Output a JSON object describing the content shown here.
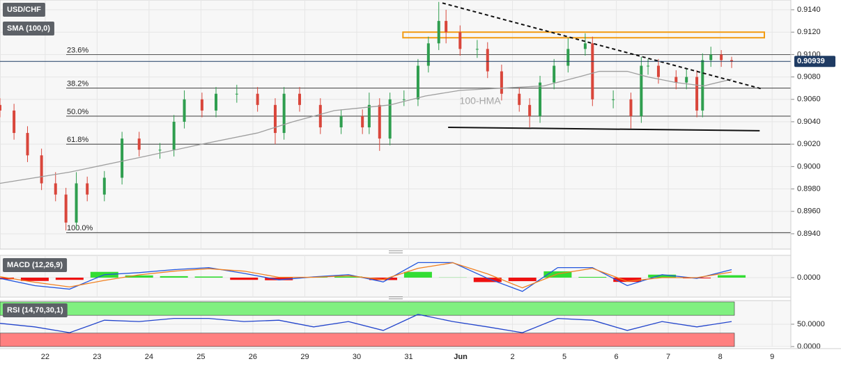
{
  "chart_data": [
    {
      "type": "candlestick",
      "ylim": [
        0.89263,
        0.91487
      ],
      "yticks": [
        {
          "value": 0.914,
          "label": "0.9140"
        },
        {
          "value": 0.912,
          "label": "0.9120"
        },
        {
          "value": 0.91,
          "label": "0.9100"
        },
        {
          "value": 0.908,
          "label": "0.9080"
        },
        {
          "value": 0.906,
          "label": "0.9060"
        },
        {
          "value": 0.904,
          "label": "0.9040"
        },
        {
          "value": 0.902,
          "label": "0.9020"
        },
        {
          "value": 0.9,
          "label": "0.9000"
        },
        {
          "value": 0.898,
          "label": "0.8980"
        },
        {
          "value": 0.896,
          "label": "0.8960"
        },
        {
          "value": 0.894,
          "label": "0.8940"
        }
      ],
      "series": [
        {
          "name": "USD/CHF",
          "type": "candlestick",
          "color": "#2f9e4f",
          "negative_color": "#d9463b",
          "x": [
            -0.87,
            -0.6,
            -0.34,
            -0.07,
            0.2,
            0.4,
            0.6,
            0.81,
            1.14,
            1.48,
            1.81,
            2.21,
            2.48,
            2.68,
            3.02,
            3.29,
            3.69,
            4.09,
            4.43,
            4.6,
            4.9,
            5.3,
            5.7,
            6.11,
            6.24,
            6.44,
            6.64,
            6.91,
            7.18,
            7.38,
            7.58,
            7.72,
            7.99,
            8.32,
            8.52,
            8.79,
            9.13,
            9.33,
            9.53,
            9.8,
            10.07,
            10.4,
            10.54,
            10.94,
            11.28,
            11.48,
            11.61,
            11.81,
            12.15,
            12.35,
            12.55,
            12.66,
            12.82,
            13.02,
            13.22
          ],
          "open": [
            0.9055,
            0.905,
            0.903,
            0.901,
            0.8985,
            0.8975,
            0.895,
            0.8985,
            0.8975,
            0.899,
            0.9025,
            0.9015,
            0.9015,
            0.904,
            0.906,
            0.905,
            0.9065,
            0.9065,
            0.9055,
            0.903,
            0.9065,
            0.9055,
            0.9035,
            0.9045,
            0.9035,
            0.9055,
            0.9025,
            0.906,
            0.906,
            0.909,
            0.911,
            0.913,
            0.912,
            0.9105,
            0.9105,
            0.9085,
            0.9065,
            0.9055,
            0.9045,
            0.9075,
            0.909,
            0.9105,
            0.911,
            0.906,
            0.906,
            0.9045,
            0.909,
            0.909,
            0.908,
            0.9075,
            0.908,
            0.905,
            0.9095,
            0.91,
            0.9095
          ],
          "high": [
            0.9061,
            0.9056,
            0.9036,
            0.9016,
            0.8995,
            0.8981,
            0.8995,
            0.8991,
            0.8996,
            0.9031,
            0.9031,
            0.9021,
            0.9046,
            0.9068,
            0.9066,
            0.9071,
            0.9073,
            0.9071,
            0.9061,
            0.9071,
            0.9071,
            0.9061,
            0.9051,
            0.9051,
            0.9066,
            0.9061,
            0.9066,
            0.9068,
            0.9096,
            0.9116,
            0.9147,
            0.914,
            0.9126,
            0.9113,
            0.9111,
            0.9091,
            0.9071,
            0.9061,
            0.9081,
            0.9096,
            0.9115,
            0.9119,
            0.9116,
            0.9068,
            0.9066,
            0.9098,
            0.9096,
            0.9096,
            0.9086,
            0.9088,
            0.9086,
            0.9101,
            0.9107,
            0.9104,
            0.9098
          ],
          "low": [
            0.9044,
            0.9024,
            0.9004,
            0.8979,
            0.8969,
            0.8943,
            0.8944,
            0.8969,
            0.8969,
            0.8984,
            0.9009,
            0.9007,
            0.9009,
            0.9034,
            0.9044,
            0.9044,
            0.9057,
            0.9049,
            0.902,
            0.9024,
            0.9049,
            0.9029,
            0.9029,
            0.9029,
            0.9029,
            0.9014,
            0.9019,
            0.9054,
            0.9054,
            0.9084,
            0.9104,
            0.911,
            0.9099,
            0.9097,
            0.9079,
            0.9059,
            0.9049,
            0.9035,
            0.9039,
            0.9069,
            0.9084,
            0.9099,
            0.9054,
            0.9052,
            0.9034,
            0.9039,
            0.9082,
            0.9074,
            0.9069,
            0.9069,
            0.9044,
            0.9044,
            0.9089,
            0.9089,
            0.9088
          ],
          "close": [
            0.905,
            0.903,
            0.901,
            0.8985,
            0.8975,
            0.895,
            0.8985,
            0.8975,
            0.899,
            0.9025,
            0.9015,
            0.9015,
            0.904,
            0.906,
            0.905,
            0.9065,
            0.9065,
            0.9055,
            0.903,
            0.9065,
            0.9055,
            0.9035,
            0.9045,
            0.9035,
            0.9055,
            0.9025,
            0.906,
            0.906,
            0.909,
            0.911,
            0.913,
            0.912,
            0.9105,
            0.9105,
            0.9085,
            0.9065,
            0.9055,
            0.9045,
            0.9075,
            0.909,
            0.9105,
            0.911,
            0.906,
            0.906,
            0.9045,
            0.909,
            0.909,
            0.908,
            0.9075,
            0.908,
            0.905,
            0.9095,
            0.91,
            0.9095,
            0.9094
          ]
        },
        {
          "name": "SMA (100,0)",
          "type": "line",
          "color": "#9e9e9e",
          "x": [
            -0.87,
            0.47,
            1.81,
            3.02,
            4.09,
            4.77,
            5.57,
            6.64,
            7.32,
            7.99,
            8.79,
            9.6,
            10.27,
            10.67,
            11.21,
            11.61,
            12.15,
            12.68,
            13.22
          ],
          "values": [
            0.8985,
            0.8995,
            0.9008,
            0.902,
            0.903,
            0.904,
            0.905,
            0.9055,
            0.9063,
            0.9068,
            0.907,
            0.9072,
            0.908,
            0.9085,
            0.9085,
            0.908,
            0.9075,
            0.9072,
            0.9078
          ]
        }
      ],
      "last_price": 0.90939,
      "last_price_color": "#1f3b63",
      "levels": [
        {
          "label": "23.6%",
          "value": 0.91
        },
        {
          "label": "38.2%",
          "value": 0.907
        },
        {
          "label": "50.0%",
          "value": 0.9045
        },
        {
          "label": "61.8%",
          "value": 0.902
        },
        {
          "label": "100.0%",
          "value": 0.8941
        }
      ],
      "lines": [
        {
          "x": [
            7.65,
            13.83
          ],
          "y": [
            0.9146,
            0.9069
          ],
          "style": "dashed",
          "color": "#111111"
        },
        {
          "x": [
            7.76,
            13.76
          ],
          "y": [
            0.9035,
            0.9032
          ],
          "style": "solid",
          "color": "#111111"
        }
      ],
      "zones": [
        {
          "x": [
            6.89,
            13.85
          ],
          "y": [
            0.9115,
            0.912
          ],
          "color": "#f29b12"
        }
      ],
      "annotations": [
        {
          "text": "100-HMA",
          "x": 7.98,
          "y": 0.9058
        }
      ]
    },
    {
      "type": "macd",
      "ylim": [
        -0.00105,
        0.0012
      ],
      "yticks": [
        {
          "value": 0,
          "label": "0.0000"
        }
      ],
      "series": [
        {
          "name": "MACD (12,26,9)",
          "type": "bar",
          "color": "#33dd33",
          "negative_color": "#ee1111",
          "x": [
            -0.87,
            -0.2,
            0.47,
            1.14,
            1.81,
            2.48,
            3.15,
            3.83,
            4.5,
            5.17,
            5.84,
            6.51,
            7.18,
            7.85,
            8.52,
            9.19,
            9.87,
            10.54,
            11.21,
            11.88,
            12.55,
            13.22
          ],
          "values": [
            -9e-05,
            -0.00018,
            -0.00012,
            0.00031,
            0.00012,
            8e-05,
            6e-05,
            -0.00012,
            -0.00014,
            2e-05,
            6e-05,
            -0.00013,
            0.00031,
            1e-05,
            -0.00024,
            -0.00019,
            0.00034,
            4e-05,
            -0.00023,
            0.00016,
            -4e-05,
            0.00013
          ]
        },
        {
          "type": "line",
          "color": "#2255dd",
          "x": [
            -0.87,
            -0.2,
            0.47,
            1.14,
            1.81,
            2.48,
            3.15,
            3.83,
            4.5,
            5.17,
            5.84,
            6.51,
            7.18,
            7.85,
            8.52,
            9.19,
            9.87,
            10.54,
            11.21,
            11.88,
            12.55,
            13.22
          ],
          "values": [
            -4e-05,
            -0.00043,
            -0.00062,
            0.00016,
            0.00027,
            0.00043,
            0.00054,
            0.00023,
            -0.00012,
            4e-05,
            0.00016,
            -0.00023,
            0.00081,
            0.00081,
            -4e-05,
            -0.00074,
            0.00054,
            0.00054,
            -0.00043,
            0.00016,
            -4e-05,
            0.00043
          ]
        },
        {
          "type": "line",
          "color": "#f08020",
          "x": [
            -0.87,
            -0.2,
            0.47,
            1.14,
            1.81,
            2.48,
            3.15,
            3.83,
            4.5,
            5.17,
            5.84,
            6.51,
            7.18,
            7.85,
            8.52,
            9.19,
            9.87,
            10.54,
            11.21,
            11.88,
            12.55,
            13.22
          ],
          "values": [
            5e-05,
            -0.00025,
            -0.0005,
            -0.00015,
            0.00015,
            0.00035,
            0.00048,
            0.00035,
            2e-05,
            2e-05,
            0.0001,
            -0.0001,
            0.0005,
            0.0008,
            0.0002,
            -0.00055,
            0.0002,
            0.0005,
            -0.0002,
            0,
            0,
            0.0003
          ]
        }
      ]
    },
    {
      "type": "rsi",
      "ylim": [
        0,
        103
      ],
      "yticks": [
        {
          "value": 50,
          "label": "50.0000"
        },
        {
          "value": 0,
          "label": "0.0000"
        }
      ],
      "xlim": [
        -0.87,
        14.36
      ],
      "xticks": [
        {
          "value": 0,
          "label": "22"
        },
        {
          "value": 1,
          "label": "23"
        },
        {
          "value": 2,
          "label": "24"
        },
        {
          "value": 3,
          "label": "25"
        },
        {
          "value": 4,
          "label": "26"
        },
        {
          "value": 5,
          "label": "29"
        },
        {
          "value": 6,
          "label": "30"
        },
        {
          "value": 7,
          "label": "31"
        },
        {
          "value": 8,
          "label": "Jun"
        },
        {
          "value": 9,
          "label": "2"
        },
        {
          "value": 10,
          "label": "5"
        },
        {
          "value": 11,
          "label": "6"
        },
        {
          "value": 12,
          "label": "7"
        },
        {
          "value": 13,
          "label": "8"
        },
        {
          "value": 14,
          "label": "9"
        }
      ],
      "bands": [
        {
          "from": 70,
          "to": 100,
          "color": "#80f080"
        },
        {
          "from": 0,
          "to": 30,
          "color": "#ff8080"
        }
      ],
      "series": [
        {
          "name": "RSI (14,70,30,1)",
          "type": "line",
          "color": "#2244cc",
          "x": [
            -0.87,
            -0.2,
            0.47,
            1.14,
            1.81,
            2.48,
            3.15,
            3.83,
            4.5,
            5.17,
            5.84,
            6.51,
            7.18,
            7.85,
            8.52,
            9.19,
            9.87,
            10.54,
            11.21,
            11.88,
            12.55,
            13.22
          ],
          "values": [
            52,
            44,
            31,
            59,
            56,
            63,
            63,
            56,
            59,
            44,
            56,
            36,
            72,
            56,
            44,
            31,
            63,
            59,
            36,
            56,
            44,
            56
          ]
        }
      ]
    }
  ]
}
